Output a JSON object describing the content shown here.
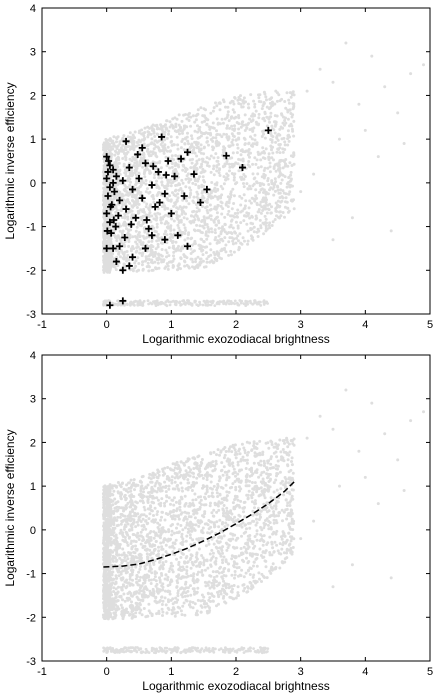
{
  "chart_data": [
    {
      "type": "scatter",
      "panel": "top",
      "xlabel": "Logarithmic exozodiacal brightness",
      "ylabel": "Logarithmic inverse efficiency",
      "xlim": [
        -1,
        5
      ],
      "ylim": [
        -3,
        4
      ],
      "xticks": [
        "-1",
        "0",
        "1",
        "2",
        "3",
        "4",
        "5"
      ],
      "yticks": [
        "-3",
        "-2",
        "-1",
        "0",
        "1",
        "2",
        "3",
        "4"
      ],
      "grid": false,
      "colors": {
        "background_points": "#dedede",
        "highlight_points": "#000000"
      },
      "series": [
        {
          "marker": "dot",
          "description_of_region": "dense cloud",
          "cloud": {
            "x_range": [
              -0.05,
              2.9
            ],
            "upper_edge": [
              [
                -0.05,
                1.0
              ],
              [
                0.5,
                1.2
              ],
              [
                1.0,
                1.5
              ],
              [
                1.5,
                1.75
              ],
              [
                2.0,
                2.0
              ],
              [
                2.5,
                2.1
              ],
              [
                2.9,
                2.1
              ]
            ],
            "lower_edge": [
              [
                -0.05,
                -2.05
              ],
              [
                1.0,
                -2.0
              ],
              [
                1.5,
                -1.95
              ],
              [
                2.0,
                -1.6
              ],
              [
                2.5,
                -1.1
              ],
              [
                2.9,
                -0.6
              ]
            ],
            "band_y": -2.75,
            "band_x_range": [
              -0.05,
              2.5
            ]
          },
          "outliers": [
            [
              3.1,
              2.1
            ],
            [
              3.3,
              2.6
            ],
            [
              3.5,
              2.3
            ],
            [
              3.7,
              3.2
            ],
            [
              3.9,
              1.8
            ],
            [
              4.1,
              2.9
            ],
            [
              4.3,
              2.2
            ],
            [
              4.5,
              1.6
            ],
            [
              4.7,
              2.5
            ],
            [
              4.9,
              2.7
            ],
            [
              4.2,
              0.6
            ],
            [
              3.8,
              -0.8
            ],
            [
              3.5,
              -1.3
            ],
            [
              4.4,
              -1.1
            ],
            [
              3.2,
              0.2
            ],
            [
              3.0,
              -0.2
            ],
            [
              4.0,
              1.2
            ],
            [
              4.6,
              0.9
            ],
            [
              3.6,
              1.0
            ]
          ]
        },
        {
          "marker": "plus",
          "points": [
            [
              0.0,
              0.6
            ],
            [
              0.05,
              0.4
            ],
            [
              0.1,
              0.3
            ],
            [
              0.0,
              0.1
            ],
            [
              0.05,
              -0.1
            ],
            [
              0.1,
              0.0
            ],
            [
              0.02,
              -0.3
            ],
            [
              0.08,
              -0.5
            ],
            [
              0.0,
              -0.7
            ],
            [
              0.05,
              -0.9
            ],
            [
              0.12,
              -0.2
            ],
            [
              0.15,
              0.15
            ],
            [
              0.2,
              -0.4
            ],
            [
              0.25,
              0.05
            ],
            [
              0.3,
              -0.6
            ],
            [
              0.35,
              0.35
            ],
            [
              0.4,
              -0.15
            ],
            [
              0.45,
              -0.8
            ],
            [
              0.5,
              0.1
            ],
            [
              0.55,
              -0.35
            ],
            [
              0.6,
              0.45
            ],
            [
              0.65,
              -1.05
            ],
            [
              0.7,
              -0.05
            ],
            [
              0.75,
              -0.55
            ],
            [
              0.8,
              0.25
            ],
            [
              0.85,
              1.05
            ],
            [
              0.9,
              -0.25
            ],
            [
              0.95,
              0.5
            ],
            [
              1.0,
              -0.7
            ],
            [
              1.05,
              0.15
            ],
            [
              1.1,
              -1.2
            ],
            [
              1.15,
              0.55
            ],
            [
              1.2,
              -0.3
            ],
            [
              1.25,
              0.7
            ],
            [
              1.35,
              0.2
            ],
            [
              1.45,
              -0.45
            ],
            [
              1.55,
              -0.15
            ],
            [
              1.25,
              -1.45
            ],
            [
              1.85,
              0.62
            ],
            [
              2.1,
              0.35
            ],
            [
              2.5,
              1.2
            ],
            [
              0.3,
              0.95
            ],
            [
              0.2,
              -1.45
            ],
            [
              0.1,
              -1.5
            ],
            [
              0.0,
              -1.5
            ],
            [
              0.15,
              -1.8
            ],
            [
              0.25,
              -2.0
            ],
            [
              0.35,
              -1.9
            ],
            [
              0.05,
              -2.8
            ],
            [
              0.25,
              -2.7
            ],
            [
              0.4,
              -1.7
            ],
            [
              0.6,
              -1.5
            ],
            [
              0.7,
              -1.2
            ],
            [
              0.9,
              -1.3
            ],
            [
              0.55,
              0.8
            ],
            [
              0.02,
              0.25
            ],
            [
              0.07,
              -1.15
            ],
            [
              0.18,
              -0.75
            ],
            [
              0.28,
              -1.25
            ],
            [
              0.38,
              -0.95
            ],
            [
              0.48,
              0.65
            ],
            [
              0.62,
              -0.85
            ],
            [
              0.72,
              0.38
            ],
            [
              0.82,
              -0.45
            ],
            [
              0.92,
              0.18
            ],
            [
              0.03,
              0.5
            ],
            [
              0.06,
              -0.55
            ],
            [
              0.11,
              -0.85
            ],
            [
              0.14,
              -1.0
            ],
            [
              0.01,
              -1.1
            ]
          ]
        }
      ]
    },
    {
      "type": "scatter",
      "panel": "bottom",
      "xlabel": "Logarithmic exozodiacal brightness",
      "ylabel": "Logarithmic inverse efficiency",
      "xlim": [
        -1,
        5
      ],
      "ylim": [
        -3,
        4
      ],
      "xticks": [
        "-1",
        "0",
        "1",
        "2",
        "3",
        "4",
        "5"
      ],
      "yticks": [
        "-3",
        "-2",
        "-1",
        "0",
        "1",
        "2",
        "3",
        "4"
      ],
      "grid": false,
      "colors": {
        "background_points": "#dedede",
        "fit_line": "#000000"
      },
      "series": [
        {
          "marker": "dot",
          "cloud": {
            "x_range": [
              -0.05,
              2.9
            ],
            "upper_edge": [
              [
                -0.05,
                1.0
              ],
              [
                0.5,
                1.2
              ],
              [
                1.0,
                1.5
              ],
              [
                1.5,
                1.75
              ],
              [
                2.0,
                2.0
              ],
              [
                2.5,
                2.1
              ],
              [
                2.9,
                2.1
              ]
            ],
            "lower_edge": [
              [
                -0.05,
                -2.05
              ],
              [
                1.0,
                -2.0
              ],
              [
                1.5,
                -1.95
              ],
              [
                2.0,
                -1.6
              ],
              [
                2.5,
                -1.1
              ],
              [
                2.9,
                -0.6
              ]
            ],
            "band_y": -2.75,
            "band_x_range": [
              -0.05,
              2.5
            ]
          },
          "outliers": [
            [
              3.1,
              2.1
            ],
            [
              3.3,
              2.6
            ],
            [
              3.5,
              2.3
            ],
            [
              3.7,
              3.2
            ],
            [
              3.9,
              1.8
            ],
            [
              4.1,
              2.9
            ],
            [
              4.3,
              2.2
            ],
            [
              4.5,
              1.6
            ],
            [
              4.7,
              2.5
            ],
            [
              4.9,
              2.7
            ],
            [
              4.2,
              0.6
            ],
            [
              3.8,
              -0.8
            ],
            [
              3.5,
              -1.3
            ],
            [
              4.4,
              -1.1
            ],
            [
              3.2,
              0.2
            ],
            [
              3.0,
              -0.2
            ],
            [
              4.0,
              1.2
            ],
            [
              4.6,
              0.9
            ],
            [
              3.6,
              1.0
            ]
          ]
        },
        {
          "type": "line",
          "style": "dashed",
          "x": [
            -0.05,
            0.25,
            0.5,
            0.75,
            1.0,
            1.25,
            1.5,
            1.75,
            2.0,
            2.25,
            2.5,
            2.75,
            2.9
          ],
          "y": [
            -0.85,
            -0.83,
            -0.78,
            -0.68,
            -0.56,
            -0.42,
            -0.25,
            -0.07,
            0.14,
            0.36,
            0.6,
            0.88,
            1.1
          ]
        }
      ]
    }
  ]
}
